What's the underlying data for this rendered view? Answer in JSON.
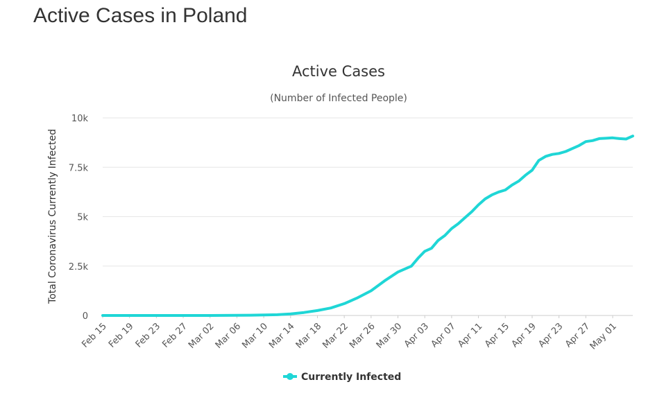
{
  "page": {
    "title": "Active Cases in Poland"
  },
  "chart_data": {
    "type": "line",
    "title": "Active Cases",
    "subtitle": "(Number of Infected People)",
    "ylabel": "Total Coronavirus Currently Infected",
    "xlabel": "",
    "ylim": [
      0,
      10000
    ],
    "yticks": [
      0,
      2500,
      5000,
      7500,
      10000
    ],
    "ytick_labels": [
      "0",
      "2.5k",
      "5k",
      "7.5k",
      "10k"
    ],
    "xtick_labels": [
      "Feb 15",
      "Feb 19",
      "Feb 23",
      "Feb 27",
      "Mar 02",
      "Mar 06",
      "Mar 10",
      "Mar 14",
      "Mar 18",
      "Mar 22",
      "Mar 26",
      "Mar 30",
      "Apr 03",
      "Apr 07",
      "Apr 11",
      "Apr 15",
      "Apr 19",
      "Apr 23",
      "Apr 27",
      "May 01"
    ],
    "grid": true,
    "legend_position": "bottom-center",
    "color": "#1fd6d6",
    "series": [
      {
        "name": "Currently Infected",
        "x": [
          "Feb 15",
          "Feb 17",
          "Feb 19",
          "Feb 21",
          "Feb 23",
          "Feb 25",
          "Feb 27",
          "Feb 29",
          "Mar 02",
          "Mar 04",
          "Mar 06",
          "Mar 08",
          "Mar 10",
          "Mar 12",
          "Mar 14",
          "Mar 16",
          "Mar 18",
          "Mar 20",
          "Mar 22",
          "Mar 24",
          "Mar 26",
          "Mar 28",
          "Mar 30",
          "Apr 01",
          "Apr 02",
          "Apr 03",
          "Apr 04",
          "Apr 05",
          "Apr 06",
          "Apr 07",
          "Apr 08",
          "Apr 09",
          "Apr 10",
          "Apr 11",
          "Apr 12",
          "Apr 13",
          "Apr 14",
          "Apr 15",
          "Apr 16",
          "Apr 17",
          "Apr 18",
          "Apr 19",
          "Apr 20",
          "Apr 21",
          "Apr 22",
          "Apr 23",
          "Apr 24",
          "Apr 25",
          "Apr 26",
          "Apr 27",
          "Apr 28",
          "Apr 29",
          "Apr 30",
          "May 01",
          "May 02",
          "May 03",
          "May 04"
        ],
        "values": [
          0,
          0,
          0,
          0,
          0,
          0,
          0,
          0,
          0,
          5,
          10,
          15,
          25,
          40,
          80,
          150,
          250,
          380,
          600,
          900,
          1250,
          1750,
          2200,
          2500,
          2900,
          3250,
          3400,
          3800,
          4050,
          4400,
          4650,
          4950,
          5250,
          5600,
          5900,
          6100,
          6250,
          6350,
          6600,
          6800,
          7100,
          7350,
          7850,
          8050,
          8150,
          8200,
          8300,
          8450,
          8600,
          8800,
          8850,
          8950,
          8970,
          8990,
          8950,
          8930,
          9080
        ]
      }
    ]
  }
}
